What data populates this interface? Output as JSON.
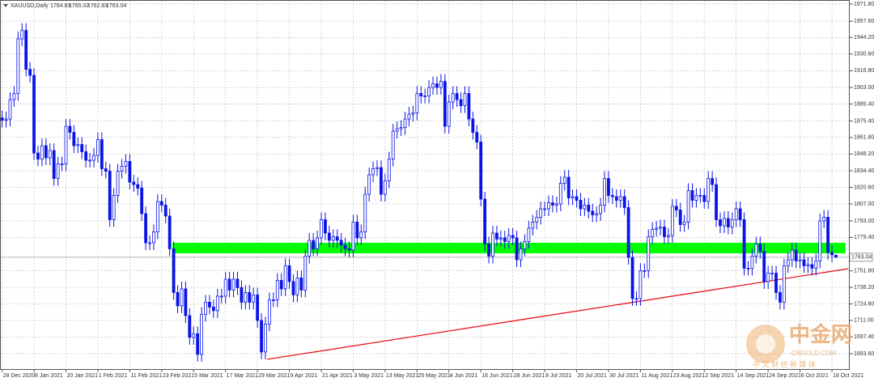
{
  "chart_data": {
    "type": "candlestick",
    "title": "XAUUSD,Daily",
    "categories": [
      "28 Dec 2020",
      null,
      null,
      null,
      null,
      null,
      null,
      null,
      "8 Jan 2021",
      null,
      null,
      null,
      null,
      null,
      null,
      null,
      "20 Jan 2021",
      null,
      null,
      null,
      null,
      null,
      null,
      null,
      "1 Feb 2021",
      null,
      null,
      null,
      null,
      null,
      null,
      null,
      "11 Feb 2021",
      null,
      null,
      null,
      null,
      null,
      null,
      null,
      "23 Feb 2021",
      null,
      null,
      null,
      null,
      null,
      null,
      null,
      "5 Mar 2021",
      null,
      null,
      null,
      null,
      null,
      null,
      null,
      "17 Mar 2021",
      null,
      null,
      null,
      null,
      null,
      null,
      null,
      "29 Mar 2021",
      null,
      null,
      null,
      null,
      null,
      null,
      null,
      "9 Apr 2021",
      null,
      null,
      null,
      null,
      null,
      null,
      null,
      "21 Apr 2021",
      null,
      null,
      null,
      null,
      null,
      null,
      null,
      "3 May 2021",
      null,
      null,
      null,
      null,
      null,
      null,
      null,
      "13 May 2021",
      null,
      null,
      null,
      null,
      null,
      null,
      null,
      "25 May 2021",
      null,
      null,
      null,
      null,
      null,
      null,
      null,
      "4 Jun 2021",
      null,
      null,
      null,
      null,
      null,
      null,
      null,
      "16 Jun 2021",
      null,
      null,
      null,
      null,
      null,
      null,
      null,
      "28 Jun 2021",
      null,
      null,
      null,
      null,
      null,
      null,
      null,
      "8 Jul 2021",
      null,
      null,
      null,
      null,
      null,
      null,
      null,
      "20 Jul 2021",
      null,
      null,
      null,
      null,
      null,
      null,
      null,
      "30 Jul 2021",
      null,
      null,
      null,
      null,
      null,
      null,
      null,
      "11 Aug 2021",
      null,
      null,
      null,
      null,
      null,
      null,
      null,
      "23 Aug 2021",
      null,
      null,
      null,
      null,
      null,
      null,
      null,
      "2 Sep 2021",
      null,
      null,
      null,
      null,
      null,
      null,
      null,
      "14 Sep 2021",
      null,
      null,
      null,
      null,
      null,
      null,
      null,
      "24 Sep 2021",
      null,
      null,
      null,
      null,
      null,
      null,
      null,
      "6 Oct 2021",
      null,
      null,
      null,
      null,
      null,
      null,
      null,
      "18 Oct 2021",
      null
    ],
    "open": [
      1878,
      1876,
      1877,
      1893,
      1898,
      1943,
      1950,
      1918,
      1913,
      1849,
      1844,
      1855,
      1845,
      1851,
      1828,
      1840,
      1840,
      1871,
      1866,
      1855,
      1856,
      1850,
      1843,
      1843,
      1847,
      1860,
      1836,
      1834,
      1794,
      1814,
      1834,
      1838,
      1842,
      1825,
      1823,
      1820,
      1799,
      1775,
      1775,
      1784,
      1809,
      1806,
      1797,
      1770,
      1734,
      1723,
      1737,
      1715,
      1697,
      1700,
      1683,
      1716,
      1726,
      1722,
      1719,
      1731,
      1731,
      1745,
      1736,
      1745,
      1738,
      1726,
      1734,
      1726,
      1732,
      1711,
      1685,
      1708,
      1728,
      1728,
      1744,
      1737,
      1756,
      1743,
      1732,
      1746,
      1736,
      1764,
      1777,
      1770,
      1779,
      1794,
      1783,
      1777,
      1780,
      1777,
      1773,
      1770,
      1769,
      1792,
      1779,
      1784,
      1815,
      1831,
      1836,
      1837,
      1815,
      1826,
      1844,
      1867,
      1869,
      1870,
      1877,
      1881,
      1882,
      1898,
      1896,
      1896,
      1903,
      1906,
      1903,
      1908,
      1871,
      1891,
      1898,
      1893,
      1888,
      1898,
      1877,
      1866,
      1858,
      1811,
      1774,
      1764,
      1783,
      1778,
      1779,
      1776,
      1781,
      1779,
      1761,
      1770,
      1776,
      1787,
      1792,
      1796,
      1803,
      1803,
      1808,
      1806,
      1807,
      1824,
      1829,
      1812,
      1813,
      1810,
      1803,
      1806,
      1801,
      1798,
      1799,
      1806,
      1828,
      1814,
      1813,
      1810,
      1813,
      1804,
      1763,
      1729,
      1729,
      1752,
      1752,
      1780,
      1786,
      1787,
      1788,
      1780,
      1781,
      1805,
      1802,
      1790,
      1792,
      1818,
      1810,
      1814,
      1814,
      1809,
      1828,
      1823,
      1794,
      1789,
      1795,
      1788,
      1794,
      1803,
      1794,
      1754,
      1754,
      1764,
      1774,
      1768,
      1743,
      1750,
      1750,
      1734,
      1726,
      1756,
      1761,
      1769,
      1760,
      1761,
      1756,
      1757,
      1754,
      1760,
      1793,
      1796,
      1767,
      1764.83
    ],
    "high": [
      1884,
      1883,
      1899,
      1904,
      1949,
      1956,
      1956,
      1924,
      1919,
      1855,
      1861,
      1861,
      1857,
      1857,
      1846,
      1846,
      1877,
      1877,
      1872,
      1862,
      1862,
      1856,
      1849,
      1853,
      1866,
      1866,
      1842,
      1840,
      1820,
      1840,
      1844,
      1848,
      1848,
      1831,
      1829,
      1826,
      1805,
      1781,
      1790,
      1815,
      1815,
      1812,
      1803,
      1776,
      1740,
      1743,
      1743,
      1721,
      1706,
      1706,
      1722,
      1732,
      1732,
      1728,
      1737,
      1737,
      1751,
      1751,
      1751,
      1751,
      1744,
      1740,
      1740,
      1738,
      1738,
      1717,
      1714,
      1734,
      1734,
      1750,
      1750,
      1762,
      1762,
      1749,
      1752,
      1752,
      1770,
      1783,
      1783,
      1785,
      1800,
      1800,
      1789,
      1786,
      1786,
      1783,
      1779,
      1776,
      1798,
      1798,
      1790,
      1821,
      1837,
      1842,
      1843,
      1843,
      1832,
      1850,
      1873,
      1875,
      1876,
      1883,
      1887,
      1888,
      1904,
      1904,
      1902,
      1909,
      1912,
      1912,
      1914,
      1914,
      1897,
      1904,
      1904,
      1899,
      1904,
      1904,
      1883,
      1872,
      1864,
      1817,
      1780,
      1789,
      1789,
      1785,
      1785,
      1787,
      1787,
      1785,
      1776,
      1782,
      1793,
      1798,
      1802,
      1809,
      1809,
      1814,
      1814,
      1813,
      1830,
      1835,
      1835,
      1819,
      1819,
      1816,
      1812,
      1812,
      1807,
      1805,
      1812,
      1834,
      1834,
      1820,
      1819,
      1819,
      1819,
      1810,
      1769,
      1735,
      1758,
      1758,
      1786,
      1792,
      1793,
      1794,
      1794,
      1787,
      1811,
      1811,
      1808,
      1798,
      1824,
      1824,
      1820,
      1820,
      1820,
      1834,
      1834,
      1829,
      1800,
      1801,
      1801,
      1800,
      1809,
      1809,
      1800,
      1760,
      1770,
      1780,
      1780,
      1774,
      1756,
      1756,
      1756,
      1740,
      1762,
      1767,
      1775,
      1775,
      1767,
      1767,
      1763,
      1763,
      1766,
      1799,
      1802,
      1802,
      1773,
      1765.02
    ],
    "low": [
      1870,
      1870,
      1871,
      1887,
      1892,
      1937,
      1912,
      1907,
      1843,
      1838,
      1838,
      1839,
      1839,
      1822,
      1822,
      1834,
      1834,
      1860,
      1849,
      1849,
      1844,
      1837,
      1837,
      1837,
      1841,
      1830,
      1828,
      1788,
      1788,
      1808,
      1828,
      1832,
      1819,
      1817,
      1814,
      1793,
      1769,
      1769,
      1769,
      1778,
      1800,
      1791,
      1764,
      1728,
      1717,
      1717,
      1709,
      1691,
      1691,
      1677,
      1677,
      1710,
      1716,
      1713,
      1713,
      1725,
      1725,
      1730,
      1730,
      1732,
      1720,
      1720,
      1720,
      1720,
      1705,
      1679,
      1679,
      1702,
      1722,
      1722,
      1731,
      1731,
      1737,
      1726,
      1726,
      1730,
      1730,
      1758,
      1764,
      1764,
      1773,
      1777,
      1771,
      1771,
      1771,
      1767,
      1764,
      1763,
      1763,
      1773,
      1773,
      1778,
      1809,
      1825,
      1830,
      1809,
      1809,
      1820,
      1838,
      1861,
      1863,
      1864,
      1871,
      1875,
      1876,
      1890,
      1890,
      1890,
      1897,
      1897,
      1897,
      1865,
      1865,
      1885,
      1887,
      1882,
      1882,
      1871,
      1860,
      1852,
      1805,
      1768,
      1758,
      1758,
      1772,
      1772,
      1770,
      1770,
      1773,
      1755,
      1755,
      1764,
      1770,
      1781,
      1786,
      1790,
      1797,
      1797,
      1800,
      1800,
      1801,
      1818,
      1806,
      1806,
      1804,
      1797,
      1797,
      1795,
      1792,
      1792,
      1793,
      1800,
      1808,
      1807,
      1804,
      1804,
      1798,
      1757,
      1723,
      1723,
      1723,
      1746,
      1746,
      1774,
      1780,
      1781,
      1774,
      1774,
      1775,
      1796,
      1784,
      1784,
      1786,
      1804,
      1804,
      1808,
      1803,
      1803,
      1817,
      1788,
      1783,
      1783,
      1782,
      1782,
      1788,
      1788,
      1748,
      1748,
      1748,
      1758,
      1762,
      1737,
      1737,
      1744,
      1728,
      1720,
      1720,
      1750,
      1755,
      1754,
      1754,
      1750,
      1750,
      1748,
      1748,
      1754,
      1787,
      1761,
      1759,
      1762.83
    ],
    "close": [
      1876,
      1877,
      1893,
      1898,
      1943,
      1950,
      1918,
      1913,
      1849,
      1844,
      1855,
      1845,
      1851,
      1828,
      1840,
      1840,
      1871,
      1866,
      1855,
      1856,
      1850,
      1843,
      1843,
      1847,
      1860,
      1836,
      1834,
      1794,
      1814,
      1834,
      1838,
      1842,
      1825,
      1823,
      1820,
      1799,
      1775,
      1775,
      1784,
      1809,
      1806,
      1797,
      1770,
      1734,
      1723,
      1737,
      1715,
      1697,
      1700,
      1683,
      1716,
      1726,
      1722,
      1719,
      1731,
      1731,
      1745,
      1736,
      1745,
      1738,
      1726,
      1734,
      1726,
      1732,
      1711,
      1685,
      1708,
      1728,
      1728,
      1744,
      1737,
      1756,
      1743,
      1732,
      1746,
      1736,
      1764,
      1777,
      1770,
      1779,
      1794,
      1783,
      1777,
      1780,
      1777,
      1773,
      1770,
      1769,
      1792,
      1779,
      1784,
      1815,
      1831,
      1836,
      1837,
      1815,
      1826,
      1844,
      1867,
      1869,
      1870,
      1877,
      1881,
      1882,
      1898,
      1896,
      1896,
      1903,
      1906,
      1903,
      1908,
      1871,
      1891,
      1898,
      1893,
      1888,
      1898,
      1877,
      1866,
      1858,
      1811,
      1774,
      1764,
      1783,
      1778,
      1779,
      1776,
      1781,
      1779,
      1761,
      1770,
      1776,
      1787,
      1792,
      1796,
      1803,
      1803,
      1808,
      1806,
      1807,
      1824,
      1829,
      1812,
      1813,
      1810,
      1803,
      1806,
      1801,
      1798,
      1799,
      1806,
      1828,
      1814,
      1813,
      1810,
      1813,
      1804,
      1763,
      1729,
      1729,
      1752,
      1752,
      1780,
      1786,
      1787,
      1788,
      1780,
      1781,
      1805,
      1802,
      1790,
      1792,
      1818,
      1810,
      1814,
      1814,
      1809,
      1828,
      1823,
      1794,
      1789,
      1795,
      1788,
      1794,
      1803,
      1794,
      1754,
      1754,
      1764,
      1774,
      1768,
      1743,
      1750,
      1750,
      1734,
      1726,
      1756,
      1761,
      1769,
      1760,
      1761,
      1756,
      1757,
      1754,
      1760,
      1793,
      1796,
      1767,
      1765,
      1763.04
    ],
    "ylim": [
      1670.9,
      1975.1
    ],
    "yticks": [
      {
        "value": 1971.8,
        "label": "1971.80"
      },
      {
        "value": 1957.6,
        "label": "1957.60"
      },
      {
        "value": 1944.2,
        "label": "1944.20"
      },
      {
        "value": 1930.6,
        "label": "1930.60"
      },
      {
        "value": 1916.8,
        "label": "1916.80"
      },
      {
        "value": 1903,
        "label": "1903.00"
      },
      {
        "value": 1889.4,
        "label": "1889.40"
      },
      {
        "value": 1875.4,
        "label": "1875.40"
      },
      {
        "value": 1861.8,
        "label": "1861.80"
      },
      {
        "value": 1848.2,
        "label": "1848.20"
      },
      {
        "value": 1834.4,
        "label": "1834.40"
      },
      {
        "value": 1820.6,
        "label": "1820.60"
      },
      {
        "value": 1807,
        "label": "1807.00"
      },
      {
        "value": 1793,
        "label": "1793.00"
      },
      {
        "value": 1779.4,
        "label": "1779.40"
      },
      {
        "value": 1751.8,
        "label": "1751.80"
      },
      {
        "value": 1738.2,
        "label": "1738.20"
      },
      {
        "value": 1724.6,
        "label": "1724.60"
      },
      {
        "value": 1711,
        "label": "1711.00"
      },
      {
        "value": 1697.4,
        "label": "1697.40"
      },
      {
        "value": 1683.6,
        "label": "1683.60"
      }
    ],
    "grid": true,
    "grid_color": "#b8b8b8",
    "line_color": "#0a14e6",
    "bull_color": "#ffffff",
    "bear_color": "#0a14e6",
    "zone": {
      "color": "#00ff00",
      "x": [
        42.7,
        211.4
      ],
      "y": [
        1766.3,
        1775
      ]
    },
    "trendline": {
      "color": "#e8141e",
      "x": [
        66.4,
        212.1
      ],
      "y": [
        1678.9,
        1753.6
      ]
    }
  },
  "watermark": {
    "brand": "中金网",
    "site": "CNGOLD.COM",
    "slogan": "中 文 财 经 新 媒 体"
  }
}
